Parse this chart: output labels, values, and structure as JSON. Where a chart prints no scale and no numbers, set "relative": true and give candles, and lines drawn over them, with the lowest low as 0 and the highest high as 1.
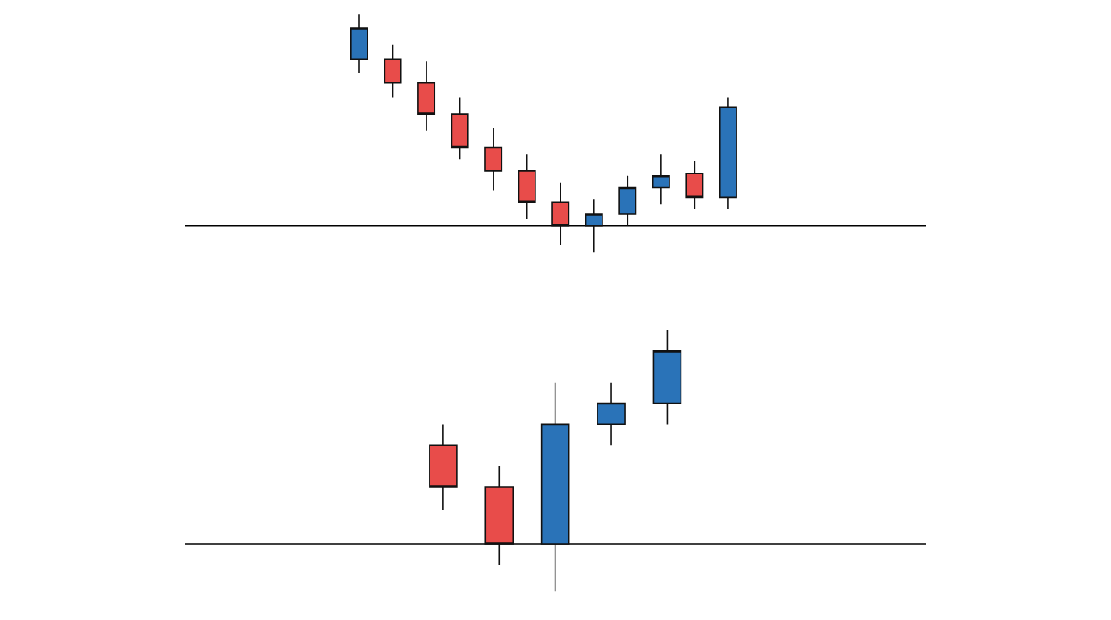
{
  "chart_data": [
    {
      "type": "candlestick",
      "relative": true,
      "categories": [
        null,
        null,
        null,
        null,
        null,
        null,
        null,
        null,
        null,
        null,
        null,
        null
      ],
      "ohlc": [
        [
          0.81,
          1.0,
          0.75,
          0.94
        ],
        [
          0.81,
          0.87,
          0.65,
          0.71
        ],
        [
          0.71,
          0.8,
          0.51,
          0.58
        ],
        [
          0.58,
          0.65,
          0.39,
          0.44
        ],
        [
          0.44,
          0.52,
          0.26,
          0.34
        ],
        [
          0.34,
          0.41,
          0.14,
          0.21
        ],
        [
          0.21,
          0.29,
          0.03,
          0.11
        ],
        [
          0.11,
          0.22,
          0.0,
          0.16
        ],
        [
          0.16,
          0.32,
          0.11,
          0.27
        ],
        [
          0.27,
          0.41,
          0.2,
          0.32
        ],
        [
          0.33,
          0.38,
          0.18,
          0.23
        ],
        [
          0.23,
          0.65,
          0.18,
          0.61
        ]
      ],
      "colors": [
        "#2a73b8",
        "#e84c4a",
        "#e84c4a",
        "#e84c4a",
        "#e84c4a",
        "#e84c4a",
        "#e84c4a",
        "#2a73b8",
        "#2a73b8",
        "#2a73b8",
        "#e84c4a",
        "#2a73b8"
      ],
      "ref_lines": [
        {
          "axis": "y",
          "value": 0.11,
          "color": "#000000"
        }
      ]
    },
    {
      "type": "candlestick",
      "relative": true,
      "categories": [
        null,
        null,
        null,
        null,
        null
      ],
      "ohlc": [
        [
          0.56,
          0.64,
          0.31,
          0.4
        ],
        [
          0.4,
          0.48,
          0.1,
          0.18
        ],
        [
          0.18,
          0.8,
          0.0,
          0.64
        ],
        [
          0.64,
          0.8,
          0.56,
          0.72
        ],
        [
          0.72,
          1.0,
          0.64,
          0.92
        ]
      ],
      "colors": [
        "#e84c4a",
        "#e84c4a",
        "#2a73b8",
        "#2a73b8",
        "#2a73b8"
      ],
      "ref_lines": [
        {
          "axis": "y",
          "value": 0.18,
          "color": "#000000"
        }
      ]
    }
  ]
}
